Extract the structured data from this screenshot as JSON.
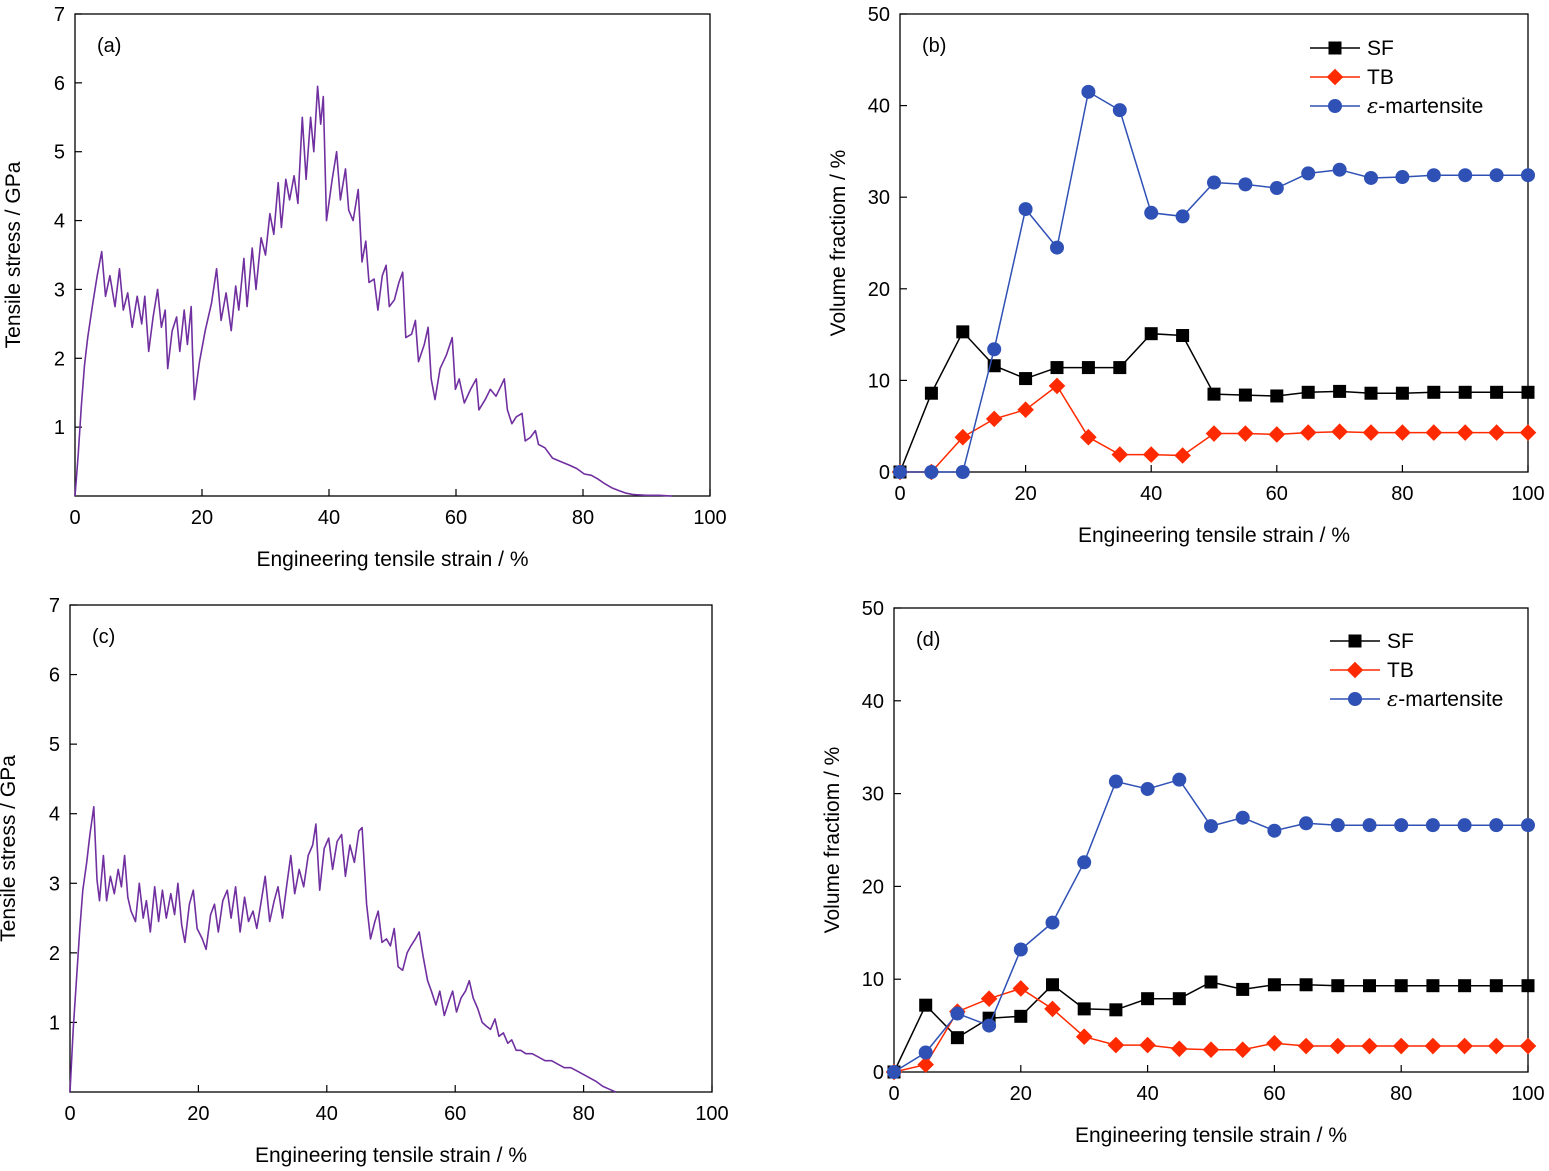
{
  "chart_data": [
    {
      "panel": "(a)",
      "type": "line",
      "xlabel": "Engineering tensile strain / %",
      "ylabel": "Tensile stress / GPa",
      "xlim": [
        0,
        100
      ],
      "ylim": [
        0,
        7
      ],
      "xticks": [
        0,
        20,
        40,
        60,
        80,
        100
      ],
      "yticks": [
        1,
        2,
        3,
        4,
        5,
        6,
        7
      ],
      "color": "#7030a0",
      "points": [
        [
          0,
          0
        ],
        [
          0.5,
          0.6
        ],
        [
          1,
          1.3
        ],
        [
          1.5,
          1.9
        ],
        [
          2,
          2.3
        ],
        [
          2.8,
          2.8
        ],
        [
          3.5,
          3.2
        ],
        [
          4.2,
          3.55
        ],
        [
          4.8,
          2.9
        ],
        [
          5.5,
          3.2
        ],
        [
          6.3,
          2.75
        ],
        [
          7,
          3.3
        ],
        [
          7.6,
          2.7
        ],
        [
          8.3,
          2.95
        ],
        [
          9,
          2.45
        ],
        [
          9.8,
          2.9
        ],
        [
          10.5,
          2.5
        ],
        [
          11,
          2.9
        ],
        [
          11.6,
          2.1
        ],
        [
          12.3,
          2.6
        ],
        [
          13,
          3.0
        ],
        [
          13.6,
          2.45
        ],
        [
          14.2,
          2.7
        ],
        [
          14.6,
          1.85
        ],
        [
          15.3,
          2.4
        ],
        [
          16,
          2.6
        ],
        [
          16.5,
          2.1
        ],
        [
          17.2,
          2.7
        ],
        [
          17.7,
          2.2
        ],
        [
          18.3,
          2.75
        ],
        [
          18.5,
          2.1
        ],
        [
          18.8,
          1.4
        ],
        [
          19.6,
          1.95
        ],
        [
          20.5,
          2.4
        ],
        [
          21.5,
          2.8
        ],
        [
          22.3,
          3.3
        ],
        [
          23,
          2.55
        ],
        [
          23.8,
          2.95
        ],
        [
          24.6,
          2.4
        ],
        [
          25.3,
          3.05
        ],
        [
          25.8,
          2.7
        ],
        [
          26.6,
          3.45
        ],
        [
          27.1,
          2.75
        ],
        [
          27.9,
          3.6
        ],
        [
          28.5,
          3.0
        ],
        [
          29.3,
          3.75
        ],
        [
          30,
          3.5
        ],
        [
          30.7,
          4.1
        ],
        [
          31.3,
          3.8
        ],
        [
          32,
          4.55
        ],
        [
          32.5,
          3.9
        ],
        [
          33.2,
          4.6
        ],
        [
          33.8,
          4.3
        ],
        [
          34.5,
          4.65
        ],
        [
          35.1,
          4.25
        ],
        [
          35.8,
          5.5
        ],
        [
          36.4,
          4.6
        ],
        [
          37.1,
          5.5
        ],
        [
          37.6,
          5.0
        ],
        [
          38.2,
          5.95
        ],
        [
          38.7,
          5.4
        ],
        [
          39.1,
          5.8
        ],
        [
          39.6,
          4.0
        ],
        [
          40.5,
          4.6
        ],
        [
          41.2,
          5.0
        ],
        [
          41.8,
          4.3
        ],
        [
          42.6,
          4.75
        ],
        [
          43.1,
          4.15
        ],
        [
          43.8,
          4.0
        ],
        [
          44.6,
          4.45
        ],
        [
          45.2,
          3.4
        ],
        [
          45.8,
          3.7
        ],
        [
          46.3,
          3.1
        ],
        [
          47.1,
          3.15
        ],
        [
          47.7,
          2.7
        ],
        [
          48.4,
          3.2
        ],
        [
          49,
          3.35
        ],
        [
          49.5,
          2.75
        ],
        [
          50.3,
          2.85
        ],
        [
          51,
          3.1
        ],
        [
          51.6,
          3.25
        ],
        [
          52.1,
          2.3
        ],
        [
          53,
          2.35
        ],
        [
          53.6,
          2.55
        ],
        [
          54.1,
          1.95
        ],
        [
          55,
          2.2
        ],
        [
          55.6,
          2.45
        ],
        [
          56.1,
          1.7
        ],
        [
          56.7,
          1.4
        ],
        [
          57.5,
          1.85
        ],
        [
          58.5,
          2.05
        ],
        [
          59.4,
          2.3
        ],
        [
          59.9,
          1.55
        ],
        [
          60.5,
          1.7
        ],
        [
          61.3,
          1.35
        ],
        [
          62.3,
          1.55
        ],
        [
          63.2,
          1.7
        ],
        [
          63.6,
          1.25
        ],
        [
          64.6,
          1.4
        ],
        [
          65.4,
          1.55
        ],
        [
          66.3,
          1.45
        ],
        [
          67.1,
          1.6
        ],
        [
          67.6,
          1.7
        ],
        [
          68.1,
          1.25
        ],
        [
          68.8,
          1.05
        ],
        [
          69.5,
          1.15
        ],
        [
          70.4,
          1.2
        ],
        [
          70.9,
          0.8
        ],
        [
          71.7,
          0.85
        ],
        [
          72.5,
          0.95
        ],
        [
          73,
          0.75
        ],
        [
          74,
          0.7
        ],
        [
          75.2,
          0.55
        ],
        [
          76.5,
          0.5
        ],
        [
          77.8,
          0.45
        ],
        [
          79,
          0.4
        ],
        [
          80.2,
          0.32
        ],
        [
          81.3,
          0.3
        ],
        [
          82.3,
          0.25
        ],
        [
          83.4,
          0.18
        ],
        [
          84.5,
          0.12
        ],
        [
          85.6,
          0.08
        ],
        [
          86.8,
          0.04
        ],
        [
          88,
          0.02
        ],
        [
          90,
          0.01
        ],
        [
          92,
          0.01
        ],
        [
          94,
          0
        ]
      ]
    },
    {
      "panel": "(b)",
      "type": "line",
      "xlabel": "Engineering tensile strain / %",
      "ylabel": "Volume fractiom / %",
      "xlim": [
        0,
        100
      ],
      "ylim": [
        0,
        50
      ],
      "xticks": [
        0,
        20,
        40,
        60,
        80,
        100
      ],
      "yticks": [
        0,
        10,
        20,
        30,
        40,
        50
      ],
      "legend": "top-right",
      "x": [
        0,
        5,
        10,
        15,
        20,
        25,
        30,
        35,
        40,
        45,
        50,
        55,
        60,
        65,
        70,
        75,
        80,
        85,
        90,
        95,
        100
      ],
      "series": [
        {
          "name": "SF",
          "color": "#000000",
          "marker": "square",
          "values": [
            0,
            8.6,
            15.3,
            11.6,
            10.2,
            11.4,
            11.4,
            11.4,
            15.1,
            14.9,
            8.5,
            8.4,
            8.3,
            8.7,
            8.8,
            8.6,
            8.6,
            8.7,
            8.7,
            8.7,
            8.7
          ]
        },
        {
          "name": "TB",
          "color": "#ff2a00",
          "marker": "diamond",
          "values": [
            0,
            0,
            3.8,
            5.8,
            6.8,
            9.4,
            3.8,
            1.9,
            1.9,
            1.8,
            4.2,
            4.2,
            4.1,
            4.3,
            4.4,
            4.3,
            4.3,
            4.3,
            4.3,
            4.3,
            4.3
          ]
        },
        {
          "name": "-martensite",
          "symbol": "ε",
          "color": "#2f51b5",
          "marker": "circle",
          "values": [
            0,
            0,
            0,
            13.4,
            28.7,
            24.5,
            41.5,
            39.5,
            28.3,
            27.9,
            31.6,
            31.4,
            31.0,
            32.6,
            33.0,
            32.1,
            32.2,
            32.4,
            32.4,
            32.4,
            32.4
          ]
        }
      ]
    },
    {
      "panel": "(c)",
      "type": "line",
      "xlabel": "Engineering tensile strain / %",
      "ylabel": "Tensile stress / GPa",
      "xlim": [
        0,
        100
      ],
      "ylim": [
        0,
        7
      ],
      "xticks": [
        0,
        20,
        40,
        60,
        80,
        100
      ],
      "yticks": [
        1,
        2,
        3,
        4,
        5,
        6,
        7
      ],
      "color": "#7030a0",
      "points": [
        [
          0,
          0
        ],
        [
          0.5,
          0.9
        ],
        [
          1,
          1.6
        ],
        [
          1.5,
          2.3
        ],
        [
          2,
          2.9
        ],
        [
          2.6,
          3.3
        ],
        [
          3.1,
          3.7
        ],
        [
          3.7,
          4.1
        ],
        [
          4.2,
          3.05
        ],
        [
          4.6,
          2.75
        ],
        [
          5.2,
          3.4
        ],
        [
          5.7,
          2.75
        ],
        [
          6.3,
          3.1
        ],
        [
          6.9,
          2.85
        ],
        [
          7.5,
          3.2
        ],
        [
          8,
          2.95
        ],
        [
          8.5,
          3.4
        ],
        [
          9,
          2.8
        ],
        [
          9.5,
          2.6
        ],
        [
          10.2,
          2.45
        ],
        [
          10.8,
          3.0
        ],
        [
          11.4,
          2.5
        ],
        [
          11.9,
          2.75
        ],
        [
          12.5,
          2.3
        ],
        [
          13.2,
          2.95
        ],
        [
          13.8,
          2.45
        ],
        [
          14.4,
          2.9
        ],
        [
          15,
          2.5
        ],
        [
          15.7,
          2.85
        ],
        [
          16.3,
          2.55
        ],
        [
          16.8,
          3.0
        ],
        [
          17.4,
          2.4
        ],
        [
          17.9,
          2.15
        ],
        [
          18.6,
          2.7
        ],
        [
          19.2,
          2.9
        ],
        [
          19.8,
          2.35
        ],
        [
          20.6,
          2.2
        ],
        [
          21.2,
          2.05
        ],
        [
          21.9,
          2.55
        ],
        [
          22.5,
          2.7
        ],
        [
          23.1,
          2.3
        ],
        [
          23.8,
          2.75
        ],
        [
          24.5,
          2.9
        ],
        [
          25.1,
          2.5
        ],
        [
          25.8,
          2.95
        ],
        [
          26.5,
          2.3
        ],
        [
          27.2,
          2.8
        ],
        [
          27.8,
          2.45
        ],
        [
          28.5,
          2.6
        ],
        [
          29.1,
          2.35
        ],
        [
          29.8,
          2.75
        ],
        [
          30.4,
          3.1
        ],
        [
          31.1,
          2.45
        ],
        [
          31.8,
          2.75
        ],
        [
          32.4,
          2.95
        ],
        [
          33.1,
          2.5
        ],
        [
          33.8,
          3.0
        ],
        [
          34.4,
          3.4
        ],
        [
          35,
          2.85
        ],
        [
          35.7,
          3.2
        ],
        [
          36.4,
          2.95
        ],
        [
          37.1,
          3.4
        ],
        [
          37.8,
          3.55
        ],
        [
          38.3,
          3.85
        ],
        [
          38.9,
          2.9
        ],
        [
          39.6,
          3.5
        ],
        [
          40.3,
          3.65
        ],
        [
          40.9,
          3.2
        ],
        [
          41.6,
          3.6
        ],
        [
          42.3,
          3.7
        ],
        [
          42.9,
          3.1
        ],
        [
          43.6,
          3.55
        ],
        [
          44.3,
          3.3
        ],
        [
          45,
          3.75
        ],
        [
          45.5,
          3.8
        ],
        [
          46.2,
          2.7
        ],
        [
          46.8,
          2.2
        ],
        [
          47.5,
          2.45
        ],
        [
          48,
          2.6
        ],
        [
          48.6,
          2.15
        ],
        [
          49.3,
          2.2
        ],
        [
          49.9,
          2.1
        ],
        [
          50.5,
          2.35
        ],
        [
          51.1,
          1.8
        ],
        [
          51.8,
          1.75
        ],
        [
          52.5,
          2.0
        ],
        [
          53.1,
          2.1
        ],
        [
          53.8,
          2.2
        ],
        [
          54.4,
          2.3
        ],
        [
          55,
          1.95
        ],
        [
          55.7,
          1.6
        ],
        [
          56.3,
          1.45
        ],
        [
          57,
          1.25
        ],
        [
          57.6,
          1.45
        ],
        [
          58.3,
          1.1
        ],
        [
          59,
          1.3
        ],
        [
          59.6,
          1.45
        ],
        [
          60.2,
          1.15
        ],
        [
          60.9,
          1.35
        ],
        [
          61.6,
          1.45
        ],
        [
          62.2,
          1.6
        ],
        [
          62.8,
          1.35
        ],
        [
          63.5,
          1.2
        ],
        [
          64.2,
          1.0
        ],
        [
          64.8,
          0.95
        ],
        [
          65.5,
          0.9
        ],
        [
          66.2,
          1.05
        ],
        [
          66.8,
          0.8
        ],
        [
          67.5,
          0.85
        ],
        [
          68.2,
          0.7
        ],
        [
          68.8,
          0.75
        ],
        [
          69.5,
          0.6
        ],
        [
          70.2,
          0.6
        ],
        [
          71,
          0.55
        ],
        [
          72,
          0.55
        ],
        [
          73,
          0.5
        ],
        [
          74,
          0.45
        ],
        [
          75,
          0.45
        ],
        [
          76,
          0.4
        ],
        [
          77,
          0.35
        ],
        [
          78,
          0.35
        ],
        [
          79,
          0.3
        ],
        [
          80,
          0.25
        ],
        [
          81,
          0.2
        ],
        [
          82,
          0.15
        ],
        [
          83,
          0.08
        ],
        [
          84,
          0.04
        ],
        [
          85,
          0
        ]
      ]
    },
    {
      "panel": "(d)",
      "type": "line",
      "xlabel": "Engineering tensile strain / %",
      "ylabel": "Volume fractiom / %",
      "xlim": [
        0,
        100
      ],
      "ylim": [
        0,
        50
      ],
      "xticks": [
        0,
        20,
        40,
        60,
        80,
        100
      ],
      "yticks": [
        0,
        10,
        20,
        30,
        40,
        50
      ],
      "legend": "top-right",
      "x": [
        0,
        5,
        10,
        15,
        20,
        25,
        30,
        35,
        40,
        45,
        50,
        55,
        60,
        65,
        70,
        75,
        80,
        85,
        90,
        95,
        100
      ],
      "series": [
        {
          "name": "SF",
          "color": "#000000",
          "marker": "square",
          "values": [
            0,
            7.2,
            3.7,
            5.8,
            6.0,
            9.4,
            6.8,
            6.7,
            7.9,
            7.9,
            9.7,
            8.9,
            9.4,
            9.4,
            9.3,
            9.3,
            9.3,
            9.3,
            9.3,
            9.3,
            9.3
          ]
        },
        {
          "name": "TB",
          "color": "#ff2a00",
          "marker": "diamond",
          "values": [
            0,
            0.8,
            6.5,
            7.9,
            9.0,
            6.8,
            3.8,
            2.9,
            2.9,
            2.5,
            2.4,
            2.4,
            3.1,
            2.8,
            2.8,
            2.8,
            2.8,
            2.8,
            2.8,
            2.8,
            2.8
          ]
        },
        {
          "name": "-martensite",
          "symbol": "ε",
          "color": "#2f51b5",
          "marker": "circle",
          "values": [
            0,
            2.1,
            6.3,
            5.0,
            13.2,
            16.1,
            22.6,
            31.3,
            30.5,
            31.5,
            26.5,
            27.4,
            26.0,
            26.8,
            26.6,
            26.6,
            26.6,
            26.6,
            26.6,
            26.6,
            26.6
          ]
        }
      ]
    }
  ]
}
